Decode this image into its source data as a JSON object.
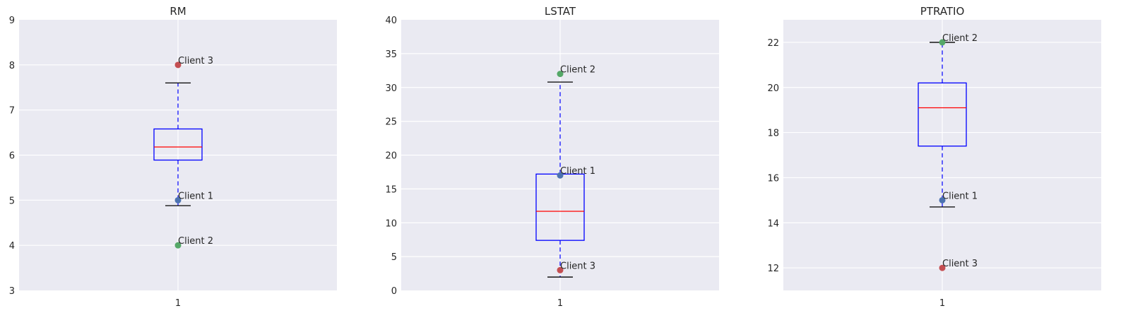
{
  "chart_data": [
    {
      "type": "boxplot",
      "title": "RM",
      "ylim": [
        3,
        9
      ],
      "yticks": [
        3,
        4,
        5,
        6,
        7,
        8,
        9
      ],
      "xticks": [
        "1"
      ],
      "box": {
        "whisker_low": 4.88,
        "q1": 5.89,
        "median": 6.18,
        "q3": 6.58,
        "whisker_high": 7.6
      },
      "points": [
        {
          "label": "Client 1",
          "value": 5,
          "color": "#4c72b0"
        },
        {
          "label": "Client 2",
          "value": 4,
          "color": "#55a868"
        },
        {
          "label": "Client 3",
          "value": 8,
          "color": "#c44e52"
        }
      ],
      "grid": true
    },
    {
      "type": "boxplot",
      "title": "LSTAT",
      "ylim": [
        0,
        40
      ],
      "yticks": [
        0,
        5,
        10,
        15,
        20,
        25,
        30,
        35,
        40
      ],
      "xticks": [
        "1"
      ],
      "box": {
        "whisker_low": 1.98,
        "q1": 7.4,
        "median": 11.7,
        "q3": 17.2,
        "whisker_high": 30.8
      },
      "points": [
        {
          "label": "Client 1",
          "value": 17,
          "color": "#4c72b0"
        },
        {
          "label": "Client 2",
          "value": 32,
          "color": "#55a868"
        },
        {
          "label": "Client 3",
          "value": 3,
          "color": "#c44e52"
        }
      ],
      "grid": true
    },
    {
      "type": "boxplot",
      "title": "PTRATIO",
      "ylim": [
        11,
        23
      ],
      "yticks": [
        12,
        14,
        16,
        18,
        20,
        22
      ],
      "xticks": [
        "1"
      ],
      "box": {
        "whisker_low": 14.7,
        "q1": 17.4,
        "median": 19.1,
        "q3": 20.2,
        "whisker_high": 22
      },
      "points": [
        {
          "label": "Client 1",
          "value": 15,
          "color": "#4c72b0"
        },
        {
          "label": "Client 2",
          "value": 22,
          "color": "#55a868"
        },
        {
          "label": "Client 3",
          "value": 12,
          "color": "#c44e52"
        }
      ],
      "grid": true
    }
  ],
  "style": {
    "axes_bg": "#eaeaf2",
    "grid_color": "#ffffff",
    "box_color": "#0000ff",
    "median_color": "#ff0000",
    "cap_color": "#000000",
    "text_color": "#262626"
  }
}
